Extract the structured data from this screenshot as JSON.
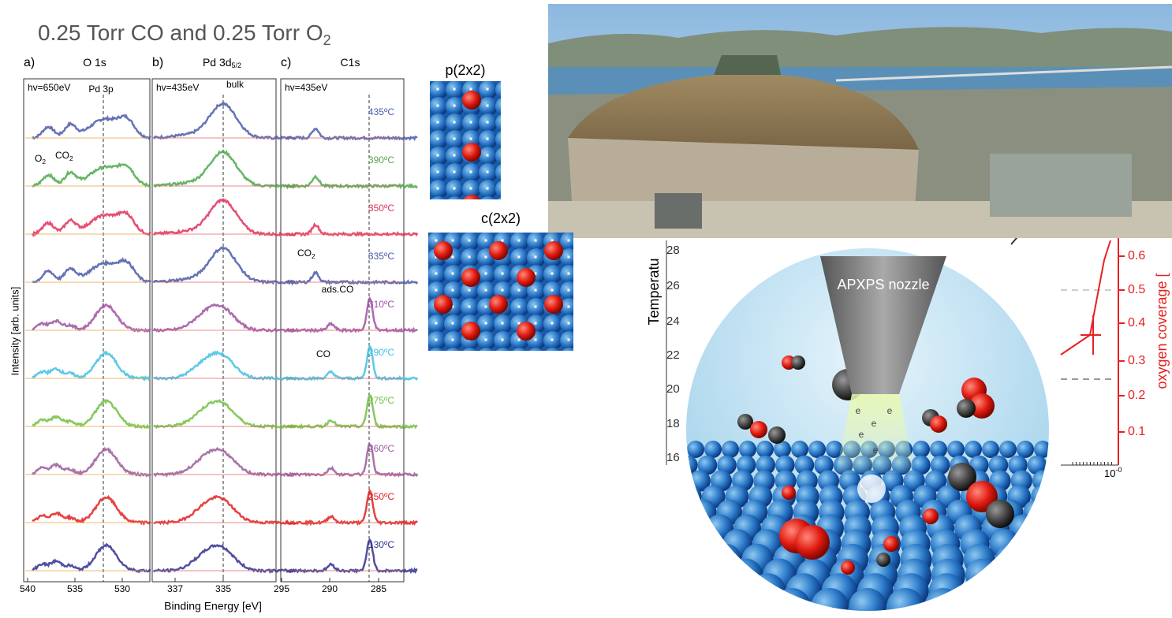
{
  "title": {
    "text": "0.25 Torr CO and 0.25 Torr O",
    "sub": "2"
  },
  "panels": [
    {
      "letter": "a)",
      "label": "O 1s",
      "energy": "hv=650eV",
      "peak": "Pd 3p",
      "notes": [
        {
          "text": "O",
          "sub": "2"
        },
        {
          "text": "CO",
          "sub": "2"
        }
      ],
      "xticks": [
        "540",
        "535",
        "530"
      ]
    },
    {
      "letter": "b)",
      "label": "Pd 3d",
      "label_sub": "5/2",
      "energy": "hv=435eV",
      "peak": "bulk",
      "xticks": [
        "337",
        "335"
      ]
    },
    {
      "letter": "c)",
      "label": "C1s",
      "energy": "hv=435eV",
      "notes": [
        {
          "text": "CO",
          "sub": "2"
        },
        {
          "text": "ads.CO"
        },
        {
          "text": "CO"
        }
      ],
      "xticks": [
        "295",
        "290",
        "285"
      ]
    }
  ],
  "temperatures": [
    "435ºC",
    "390ºC",
    "350ºC",
    "335ºC",
    "310ºC",
    "290ºC",
    "275ºC",
    "260ºC",
    "250ºC",
    "130ºC"
  ],
  "y_axis_title": "Intensity [arb. units]",
  "x_axis_title": "Binding Energy [eV]",
  "structures": [
    "p(2x2)",
    "c(2x2)"
  ],
  "background_plot": {
    "y_title": "Temperatu",
    "yticks": [
      "28",
      "26",
      "24",
      "22",
      "20",
      "18",
      "16"
    ],
    "y2_title": "oxygen coverage [",
    "y2ticks": [
      "0.6",
      "0.5",
      "0.4",
      "0.3",
      "0.2",
      "0.1"
    ],
    "xtick": "10",
    "xtick_sup": "-0"
  },
  "illustration": {
    "nozzle": "APXPS nozzle",
    "electron": "e"
  }
}
